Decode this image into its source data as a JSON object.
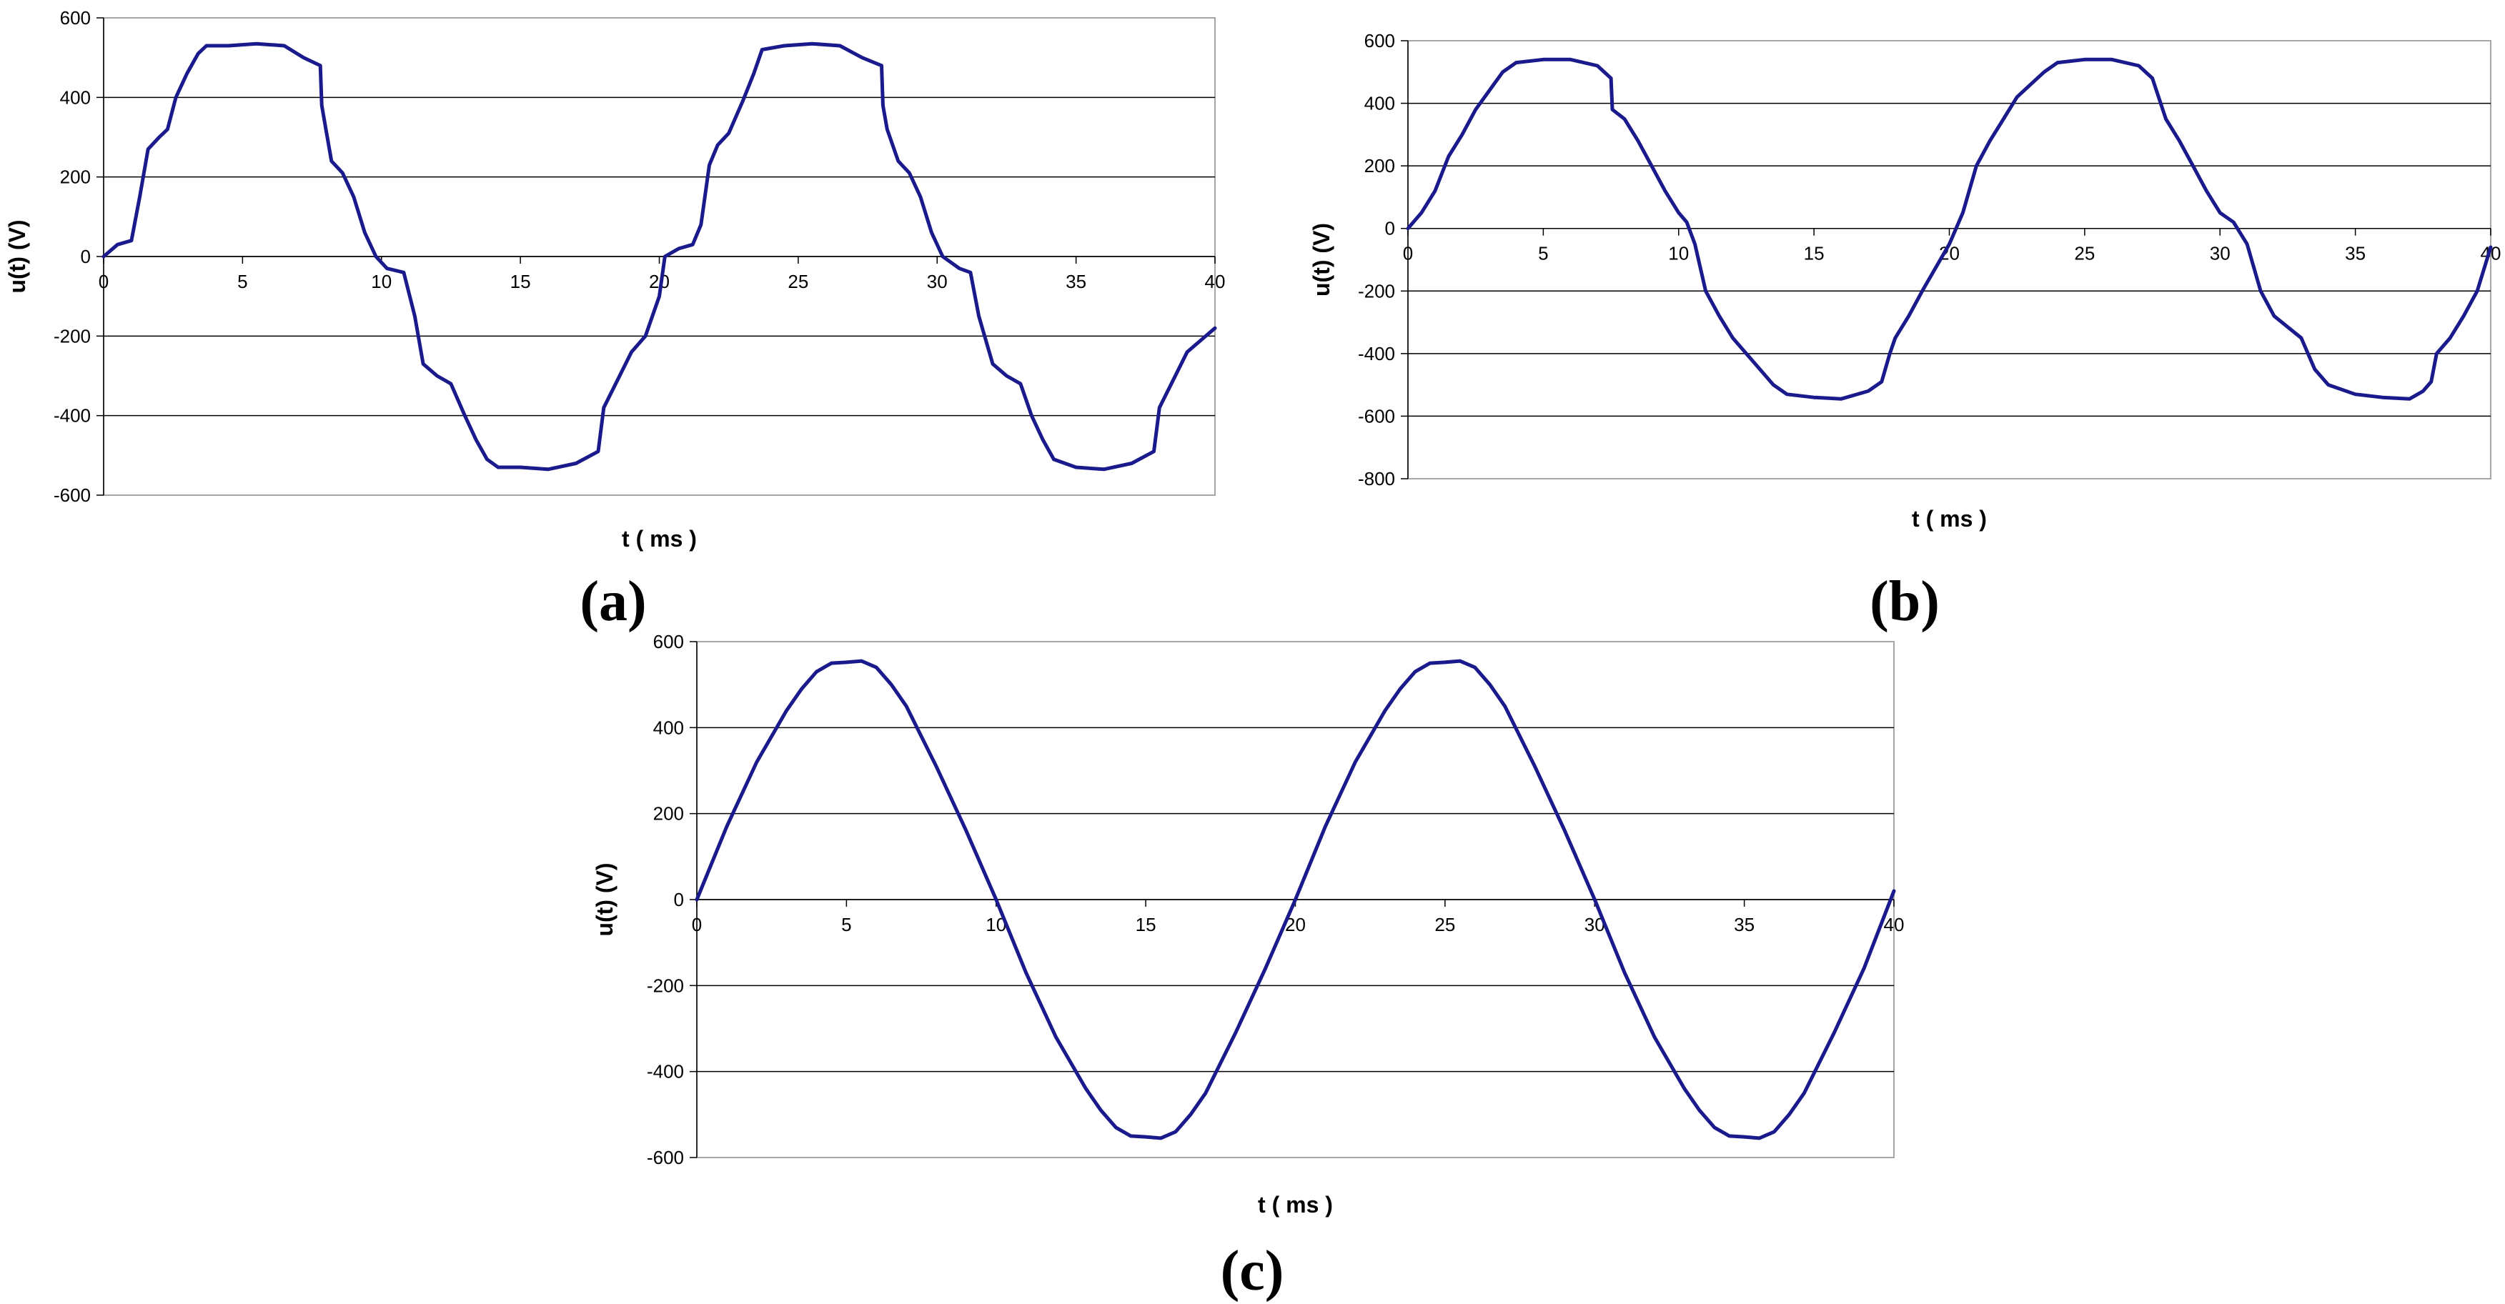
{
  "colors": {
    "trace": "#1a1a8c",
    "grid": "#000000",
    "frame": "#a6a6a6"
  },
  "chart_data": [
    {
      "panel": "(a)",
      "type": "line",
      "xlabel": "t ( ms )",
      "ylabel": "u(t)  (V)",
      "xlim": [
        0,
        40
      ],
      "ylim": [
        -600,
        600
      ],
      "xticks": [
        0,
        5,
        10,
        15,
        20,
        25,
        30,
        35,
        40
      ],
      "yticks": [
        -600,
        -400,
        -200,
        0,
        200,
        400,
        600
      ],
      "grid": "horizontal",
      "series": [
        {
          "x": [
            0,
            0.5,
            1.0,
            1.3,
            1.6,
            2.0,
            2.3,
            2.6,
            3.0,
            3.4,
            3.7,
            4.5,
            5.5,
            6.5,
            7.2,
            7.8,
            7.85,
            8.0,
            8.2,
            8.6,
            9.0,
            9.4,
            9.8,
            10.2,
            10.8,
            11.2,
            11.5,
            12.0,
            12.5,
            13.0,
            13.4,
            13.8,
            14.2,
            15.0,
            16.0,
            17.0,
            17.8,
            18.0,
            18.5,
            19.0,
            19.5,
            20.0,
            20.2,
            20.7,
            21.2,
            21.5,
            21.8,
            22.1,
            22.5,
            23.0,
            23.4,
            23.7,
            24.5,
            25.5,
            26.5,
            27.3,
            28.0,
            28.05,
            28.2,
            28.6,
            29.0,
            29.4,
            29.8,
            30.2,
            30.8,
            31.2,
            31.5,
            32.0,
            32.5,
            33.0,
            33.4,
            33.8,
            34.2,
            35.0,
            36.0,
            37.0,
            37.8,
            38.0,
            38.5,
            39.0,
            39.5,
            40.0
          ],
          "y": [
            0,
            30,
            40,
            150,
            270,
            300,
            320,
            400,
            460,
            510,
            530,
            530,
            535,
            530,
            500,
            480,
            380,
            320,
            240,
            210,
            150,
            60,
            0,
            -30,
            -40,
            -150,
            -270,
            -300,
            -320,
            -400,
            -460,
            -510,
            -530,
            -530,
            -535,
            -520,
            -490,
            -380,
            -310,
            -240,
            -200,
            -100,
            0,
            20,
            30,
            80,
            230,
            280,
            310,
            390,
            460,
            520,
            530,
            535,
            530,
            500,
            480,
            380,
            320,
            240,
            210,
            150,
            60,
            0,
            -30,
            -40,
            -150,
            -270,
            -300,
            -320,
            -400,
            -460,
            -510,
            -530,
            -535,
            -520,
            -490,
            -380,
            -310,
            -240,
            -210,
            -180
          ]
        }
      ]
    },
    {
      "panel": "(b)",
      "type": "line",
      "xlabel": "t ( ms )",
      "ylabel": "u(t)  (V)",
      "xlim": [
        0,
        40
      ],
      "ylim": [
        -800,
        600
      ],
      "xticks": [
        0,
        5,
        10,
        15,
        20,
        25,
        30,
        35,
        40
      ],
      "yticks": [
        -800,
        -600,
        -400,
        -200,
        0,
        200,
        400,
        600
      ],
      "grid": "horizontal",
      "series": [
        {
          "x": [
            0,
            0.5,
            1.0,
            1.5,
            2.0,
            2.5,
            3.0,
            3.5,
            4.0,
            5.0,
            6.0,
            7.0,
            7.5,
            7.55,
            8.0,
            8.5,
            9.0,
            9.5,
            10.0,
            10.3,
            10.6,
            11.0,
            11.5,
            12.0,
            13.0,
            13.5,
            14.0,
            15.0,
            16.0,
            17.0,
            17.5,
            17.8,
            18.0,
            18.5,
            19.0,
            20.0,
            20.5,
            21.0,
            21.5,
            22.0,
            22.5,
            23.0,
            23.5,
            24.0,
            25.0,
            26.0,
            27.0,
            27.5,
            28.0,
            28.5,
            29.0,
            29.5,
            30.0,
            30.5,
            31.0,
            31.5,
            32.0,
            33.0,
            33.5,
            34.0,
            35.0,
            36.0,
            37.0,
            37.5,
            37.8,
            38.0,
            38.5,
            39.0,
            39.5,
            40.0
          ],
          "y": [
            0,
            50,
            120,
            230,
            300,
            380,
            440,
            500,
            530,
            540,
            540,
            520,
            480,
            380,
            350,
            280,
            200,
            120,
            50,
            20,
            -50,
            -200,
            -280,
            -350,
            -450,
            -500,
            -530,
            -540,
            -545,
            -520,
            -490,
            -400,
            -350,
            -280,
            -200,
            -50,
            50,
            200,
            280,
            350,
            420,
            460,
            500,
            530,
            540,
            540,
            520,
            480,
            350,
            280,
            200,
            120,
            50,
            20,
            -50,
            -200,
            -280,
            -350,
            -450,
            -500,
            -530,
            -540,
            -545,
            -520,
            -490,
            -400,
            -350,
            -280,
            -200,
            -60
          ]
        }
      ]
    },
    {
      "panel": "(c)",
      "type": "line",
      "xlabel": "t ( ms )",
      "ylabel": "u(t)  (V)",
      "xlim": [
        0,
        40
      ],
      "ylim": [
        -600,
        600
      ],
      "xticks": [
        0,
        5,
        10,
        15,
        20,
        25,
        30,
        35,
        40
      ],
      "yticks": [
        -600,
        -400,
        -200,
        0,
        200,
        400,
        600
      ],
      "grid": "horizontal",
      "series": [
        {
          "x": [
            0,
            1,
            2,
            3,
            3.5,
            4,
            4.5,
            5,
            5.5,
            6,
            6.5,
            7,
            8,
            9,
            10,
            11,
            12,
            13,
            13.5,
            14,
            14.5,
            15,
            15.5,
            16,
            16.5,
            17,
            18,
            19,
            20,
            21,
            22,
            23,
            23.5,
            24,
            24.5,
            25,
            25.5,
            26,
            26.5,
            27,
            28,
            29,
            30,
            31,
            32,
            33,
            33.5,
            34,
            34.5,
            35,
            35.5,
            36,
            36.5,
            37,
            38,
            39,
            40
          ],
          "y": [
            0,
            170,
            320,
            440,
            490,
            530,
            550,
            552,
            555,
            540,
            500,
            450,
            310,
            160,
            0,
            -170,
            -320,
            -440,
            -490,
            -530,
            -550,
            -552,
            -555,
            -540,
            -500,
            -450,
            -310,
            -160,
            0,
            170,
            320,
            440,
            490,
            530,
            550,
            552,
            555,
            540,
            500,
            450,
            310,
            160,
            0,
            -170,
            -320,
            -440,
            -490,
            -530,
            -550,
            -552,
            -555,
            -540,
            -500,
            -450,
            -310,
            -160,
            20
          ]
        }
      ]
    }
  ]
}
